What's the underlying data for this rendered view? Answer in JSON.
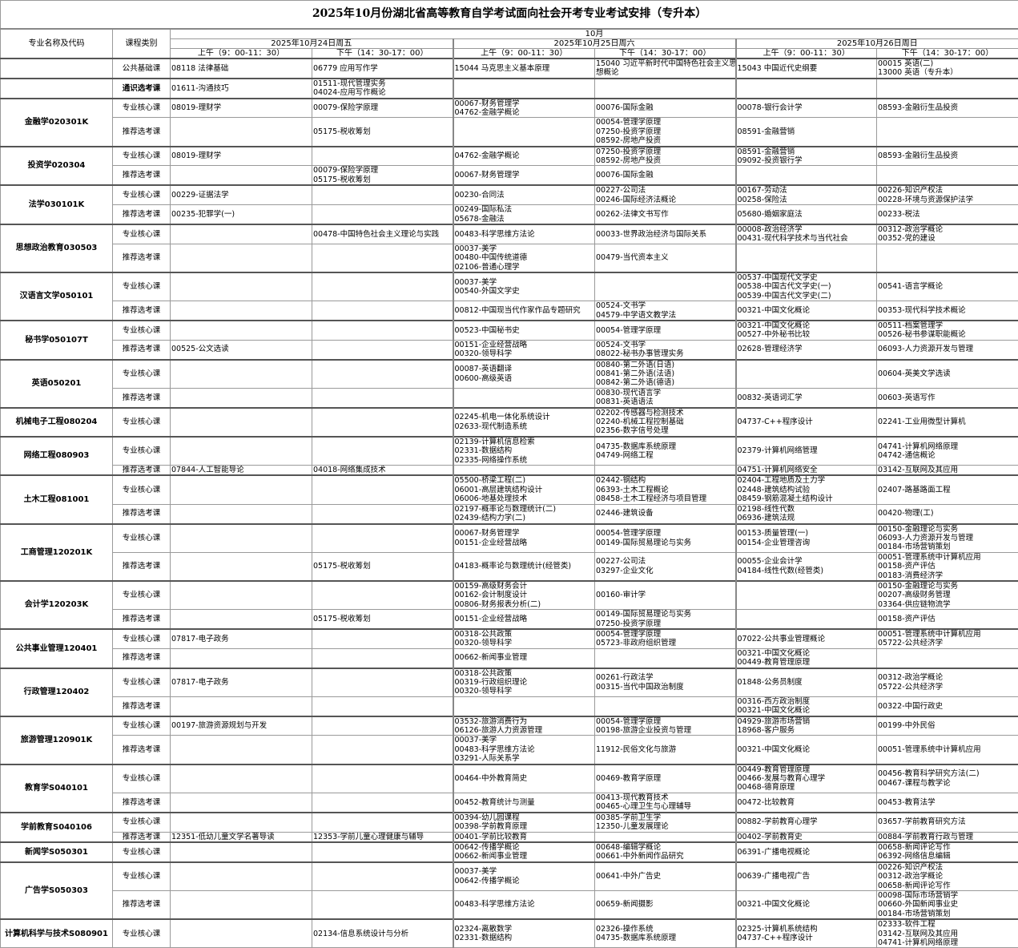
{
  "title": "2025年10月份湖北省高等教育自学考试面向社会开考专业考试安排（专升本）",
  "header": {
    "major_col": "专业名称及代码",
    "category_col": "课程类别",
    "month": "10月",
    "dates": [
      "2025年10月24日周五",
      "2025年10月25日周六",
      "2025年10月26日周日"
    ],
    "sessions": [
      "上午（9：00-11：30）",
      "下午（14：30-17：00）",
      "上午（9：00-11：30）",
      "下午（14：30-17：00）",
      "上午（9：00-11：30）",
      "下午（14：30-17：00）"
    ]
  },
  "majors": [
    {
      "name": "",
      "rows": [
        {
          "category": "公共基础课",
          "cells": [
            [
              "08118 法律基础"
            ],
            [
              "06779 应用写作学"
            ],
            [
              "15044 马克思主义基本原理"
            ],
            [
              "15040 习近平新时代中国特色社会主义思",
              "想概论"
            ],
            [
              "15043 中国近代史纲要"
            ],
            [
              "00015 英语(二)",
              "13000 英语（专升本）"
            ]
          ]
        }
      ]
    },
    {
      "name": "",
      "rows": [
        {
          "category": "通识选考课",
          "bold": true,
          "cells": [
            [
              "01611-沟通技巧"
            ],
            [
              "01511-现代管理实务",
              "04024-应用写作概论"
            ],
            [],
            [],
            [],
            []
          ]
        }
      ]
    },
    {
      "name": "金融学020301K",
      "rows": [
        {
          "category": "专业核心课",
          "cells": [
            [
              "08019-理财学"
            ],
            [
              "00079-保险学原理"
            ],
            [
              "00067-财务管理学",
              "04762-金融学概论"
            ],
            [
              "00076-国际金融"
            ],
            [
              "00078-银行会计学"
            ],
            [
              "08593-金融衍生品投资"
            ]
          ]
        },
        {
          "category": "推荐选考课",
          "cells": [
            [],
            [
              "05175-税收筹划"
            ],
            [],
            [
              "00054-管理学原理",
              "07250-投资学原理",
              "08592-房地产投资"
            ],
            [
              "08591-金融营销"
            ],
            []
          ]
        }
      ]
    },
    {
      "name": "投资学020304",
      "rows": [
        {
          "category": "专业核心课",
          "cells": [
            [
              "08019-理财学"
            ],
            [],
            [
              "04762-金融学概论"
            ],
            [
              "07250-投资学原理",
              "08592-房地产投资"
            ],
            [
              "08591-金融营销",
              "09092-投资银行学"
            ],
            [
              "08593-金融衍生品投资"
            ]
          ]
        },
        {
          "category": "推荐选考课",
          "cells": [
            [],
            [
              "00079-保险学原理",
              "05175-税收筹划"
            ],
            [
              "00067-财务管理学"
            ],
            [
              "00076-国际金融"
            ],
            [],
            []
          ]
        }
      ]
    },
    {
      "name": "法学030101K",
      "rows": [
        {
          "category": "专业核心课",
          "cells": [
            [
              "00229-证据法学"
            ],
            [],
            [
              "00230-合同法"
            ],
            [
              "00227-公司法",
              "00246-国际经济法概论"
            ],
            [
              "00167-劳动法",
              "00258-保险法"
            ],
            [
              "00226-知识产权法",
              "00228-环境与资源保护法学"
            ]
          ]
        },
        {
          "category": "推荐选考课",
          "cells": [
            [
              "00235-犯罪学(一)"
            ],
            [],
            [
              "00249-国际私法",
              "05678-金融法"
            ],
            [
              "00262-法律文书写作"
            ],
            [
              "05680-婚姻家庭法"
            ],
            [
              "00233-税法"
            ]
          ]
        }
      ]
    },
    {
      "name": "思想政治教育030503",
      "rows": [
        {
          "category": "专业核心课",
          "cells": [
            [],
            [
              "00478-中国特色社会主义理论与实践"
            ],
            [
              "00483-科学思维方法论"
            ],
            [
              "00033-世界政治经济与国际关系"
            ],
            [
              "00008-政治经济学",
              "00431-现代科学技术与当代社会"
            ],
            [
              "00312-政治学概论",
              "00352-党的建设"
            ]
          ]
        },
        {
          "category": "推荐选考课",
          "cells": [
            [],
            [],
            [
              "00037-美学",
              "00480-中国传统道德",
              "02106-普通心理学"
            ],
            [
              "00479-当代资本主义"
            ],
            [],
            []
          ]
        }
      ]
    },
    {
      "name": "汉语言文学050101",
      "rows": [
        {
          "category": "专业核心课",
          "cells": [
            [],
            [],
            [
              "00037-美学",
              "00540-外国文学史"
            ],
            [],
            [
              "00537-中国现代文学史",
              "00538-中国古代文学史(一)",
              "00539-中国古代文学史(二)"
            ],
            [
              "00541-语言学概论"
            ]
          ]
        },
        {
          "category": "推荐选考课",
          "cells": [
            [],
            [],
            [
              "00812-中国现当代作家作品专题研究"
            ],
            [
              "00524-文书学",
              "04579-中学语文教学法"
            ],
            [
              "00321-中国文化概论"
            ],
            [
              "00353-现代科学技术概论"
            ]
          ]
        }
      ]
    },
    {
      "name": "秘书学050107T",
      "rows": [
        {
          "category": "专业核心课",
          "cells": [
            [],
            [],
            [
              "00523-中国秘书史"
            ],
            [
              "00054-管理学原理"
            ],
            [
              "00321-中国文化概论",
              "00527-中外秘书比较"
            ],
            [
              "00511-档案管理学",
              "00526-秘书参谋职能概论"
            ]
          ]
        },
        {
          "category": "推荐选考课",
          "cells": [
            [
              "00525-公文选读"
            ],
            [],
            [
              "00151-企业经营战略",
              "00320-领导科学"
            ],
            [
              "00524-文书学",
              "08022-秘书办事管理实务"
            ],
            [
              "02628-管理经济学"
            ],
            [
              "06093-人力资源开发与管理"
            ]
          ]
        }
      ]
    },
    {
      "name": "英语050201",
      "rows": [
        {
          "category": "专业核心课",
          "cells": [
            [],
            [],
            [
              "00087-英语翻译",
              "00600-高级英语"
            ],
            [
              "00840-第二外语(日语)",
              "00841-第二外语(法语)",
              "00842-第二外语(德语)"
            ],
            [],
            [
              "00604-英美文学选读"
            ]
          ]
        },
        {
          "category": "推荐选考课",
          "cells": [
            [],
            [],
            [],
            [
              "00830-现代语言学",
              "00831-英语语法"
            ],
            [
              "00832-英语词汇学"
            ],
            [
              "00603-英语写作"
            ]
          ]
        }
      ]
    },
    {
      "name": "机械电子工程080204",
      "rows": [
        {
          "category": "专业核心课",
          "cells": [
            [],
            [],
            [
              "02245-机电一体化系统设计",
              "02633-现代制造系统"
            ],
            [
              "02202-传感器与检测技术",
              "02240-机械工程控制基础",
              "02356-数字信号处理"
            ],
            [
              "04737-C++程序设计"
            ],
            [
              "02241-工业用微型计算机"
            ]
          ]
        }
      ]
    },
    {
      "name": "网络工程080903",
      "rows": [
        {
          "category": "专业核心课",
          "cells": [
            [],
            [],
            [
              "02139-计算机信息检索",
              "02331-数据结构",
              "02335-网络操作系统"
            ],
            [
              "04735-数据库系统原理",
              "04749-网络工程"
            ],
            [
              "02379-计算机网络管理"
            ],
            [
              "04741-计算机网络原理",
              "04742-通信概论"
            ]
          ]
        },
        {
          "category": "推荐选考课",
          "cells": [
            [
              "07844-人工智能导论"
            ],
            [
              "04018-网络集成技术"
            ],
            [],
            [],
            [
              "04751-计算机网络安全"
            ],
            [
              "03142-互联网及其应用"
            ]
          ]
        }
      ]
    },
    {
      "name": "土木工程081001",
      "rows": [
        {
          "category": "专业核心课",
          "cells": [
            [],
            [],
            [
              "05500-桥梁工程(二)",
              "06001-高层建筑结构设计",
              "06006-地基处理技术"
            ],
            [
              "02442-钢结构",
              "06393-土木工程概论",
              "08458-土木工程经济与项目管理"
            ],
            [
              "02404-工程地质及土力学",
              "02448-建筑结构试验",
              "08459-钢筋混凝土结构设计"
            ],
            [
              "02407-路基路面工程"
            ]
          ]
        },
        {
          "category": "推荐选考课",
          "cells": [
            [],
            [],
            [
              "02197-概率论与数理统计(二)",
              "02439-结构力学(二)"
            ],
            [
              "02446-建筑设备"
            ],
            [
              "02198-线性代数",
              "06936-建筑法规"
            ],
            [
              "00420-物理(工)"
            ]
          ]
        }
      ]
    },
    {
      "name": "工商管理120201K",
      "rows": [
        {
          "category": "专业核心课",
          "cells": [
            [],
            [],
            [
              "00067-财务管理学",
              "00151-企业经营战略"
            ],
            [
              "00054-管理学原理",
              "00149-国际贸易理论与实务"
            ],
            [
              "00153-质量管理(一)",
              "00154-企业管理咨询"
            ],
            [
              "00150-金融理论与实务",
              "06093-人力资源开发与管理",
              "00184-市场营销策划"
            ]
          ]
        },
        {
          "category": "推荐选考课",
          "cells": [
            [],
            [
              "05175-税收筹划"
            ],
            [
              "04183-概率论与数理统计(经管类)"
            ],
            [
              "00227-公司法",
              "03297-企业文化"
            ],
            [
              "00055-企业会计学",
              "04184-线性代数(经管类)"
            ],
            [
              "00051-管理系统中计算机应用",
              "00158-资产评估",
              "00183-消费经济学"
            ]
          ]
        }
      ]
    },
    {
      "name": "会计学120203K",
      "rows": [
        {
          "category": "专业核心课",
          "cells": [
            [],
            [],
            [
              "00159-高级财务会计",
              "00162-会计制度设计",
              "00806-财务报表分析(二)"
            ],
            [
              "00160-审计学"
            ],
            [],
            [
              "00150-金融理论与实务",
              "00207-高级财务管理",
              "03364-供应链物流学"
            ]
          ]
        },
        {
          "category": "推荐选考课",
          "cells": [
            [],
            [
              "05175-税收筹划"
            ],
            [
              "00151-企业经营战略"
            ],
            [
              "00149-国际贸易理论与实务",
              "07250-投资学原理"
            ],
            [],
            [
              "00158-资产评估"
            ]
          ]
        }
      ]
    },
    {
      "name": "公共事业管理120401",
      "rows": [
        {
          "category": "专业核心课",
          "cells": [
            [
              "07817-电子政务"
            ],
            [],
            [
              "00318-公共政策",
              "00320-领导科学"
            ],
            [
              "00054-管理学原理",
              "05723-非政府组织管理"
            ],
            [
              "07022-公共事业管理概论"
            ],
            [
              "00051-管理系统中计算机应用",
              "05722-公共经济学"
            ]
          ]
        },
        {
          "category": "推荐选考课",
          "cells": [
            [],
            [],
            [
              "00662-新闻事业管理"
            ],
            [],
            [
              "00321-中国文化概论",
              "00449-教育管理原理"
            ],
            []
          ]
        }
      ]
    },
    {
      "name": "行政管理120402",
      "rows": [
        {
          "category": "专业核心课",
          "cells": [
            [
              "07817-电子政务"
            ],
            [],
            [
              "00318-公共政策",
              "00319-行政组织理论",
              "00320-领导科学"
            ],
            [
              "00261-行政法学",
              "00315-当代中国政治制度"
            ],
            [
              "01848-公务员制度"
            ],
            [
              "00312-政治学概论",
              "05722-公共经济学"
            ]
          ]
        },
        {
          "category": "推荐选考课",
          "cells": [
            [],
            [],
            [],
            [],
            [
              "00316-西方政治制度",
              "00321-中国文化概论"
            ],
            [
              "00322-中国行政史"
            ]
          ]
        }
      ]
    },
    {
      "name": "旅游管理120901K",
      "rows": [
        {
          "category": "专业核心课",
          "cells": [
            [
              "00197-旅游资源规划与开发"
            ],
            [],
            [
              "03532-旅游消费行为",
              "06126-旅游人力资源管理"
            ],
            [
              "00054-管理学原理",
              "00198-旅游企业投资与管理"
            ],
            [
              "04929-旅游市场营销",
              "18968-客户服务"
            ],
            [
              "00199-中外民俗"
            ]
          ]
        },
        {
          "category": "推荐选考课",
          "cells": [
            [],
            [],
            [
              "00037-美学",
              "00483-科学思维方法论",
              "03291-人际关系学"
            ],
            [
              "11912-民俗文化与旅游"
            ],
            [
              "00321-中国文化概论"
            ],
            [
              "00051-管理系统中计算机应用"
            ]
          ]
        }
      ]
    },
    {
      "name": "教育学S040101",
      "rows": [
        {
          "category": "专业核心课",
          "cells": [
            [],
            [],
            [
              "00464-中外教育简史"
            ],
            [
              "00469-教育学原理"
            ],
            [
              "00449-教育管理原理",
              "00466-发展与教育心理学",
              "00468-德育原理"
            ],
            [
              "00456-教育科学研究方法(二)",
              "00467-课程与教学论"
            ]
          ]
        },
        {
          "category": "推荐选考课",
          "cells": [
            [],
            [],
            [
              "00452-教育统计与测量"
            ],
            [
              "00413-现代教育技术",
              "00465-心理卫生与心理辅导"
            ],
            [
              "00472-比较教育"
            ],
            [
              "00453-教育法学"
            ]
          ]
        }
      ]
    },
    {
      "name": "学前教育S040106",
      "rows": [
        {
          "category": "专业核心课",
          "cells": [
            [],
            [],
            [
              "00394-幼儿园课程",
              "00398-学前教育原理"
            ],
            [
              "00385-学前卫生学",
              "12350-儿童发展理论"
            ],
            [
              "00882-学前教育心理学"
            ],
            [
              "03657-学前教育研究方法"
            ]
          ]
        },
        {
          "category": "推荐选考课",
          "cells": [
            [
              "12351-低幼儿童文学名著导读"
            ],
            [
              "12353-学前儿童心理健康与辅导"
            ],
            [
              "00401-学前比较教育"
            ],
            [],
            [
              "00402-学前教育史"
            ],
            [
              "00884-学前教育行政与管理"
            ]
          ]
        }
      ]
    },
    {
      "name": "新闻学S050301",
      "rows": [
        {
          "category": "专业核心课",
          "cells": [
            [],
            [],
            [
              "00642-传播学概论",
              "00662-新闻事业管理"
            ],
            [
              "00648-编辑学概论",
              "00661-中外新闻作品研究"
            ],
            [
              "06391-广播电视概论"
            ],
            [
              "00658-新闻评论写作",
              "06392-网络信息编辑"
            ]
          ]
        }
      ]
    },
    {
      "name": "广告学S050303",
      "rows": [
        {
          "category": "专业核心课",
          "cells": [
            [],
            [],
            [
              "00037-美学",
              "00642-传播学概论"
            ],
            [
              "00641-中外广告史"
            ],
            [
              "00639-广播电视广告"
            ],
            [
              "00226-知识产权法",
              "00312-政治学概论",
              "00658-新闻评论写作"
            ]
          ]
        },
        {
          "category": "推荐选考课",
          "cells": [
            [],
            [],
            [
              "00483-科学思维方法论"
            ],
            [
              "00659-新闻摄影"
            ],
            [
              "00321-中国文化概论"
            ],
            [
              "00098-国际市场营销学",
              "00660-外国新闻事业史",
              "00184-市场营销策划"
            ]
          ]
        }
      ]
    },
    {
      "name": "计算机科学与技术S080901",
      "rows": [
        {
          "category": "专业核心课",
          "cells": [
            [],
            [
              "02134-信息系统设计与分析"
            ],
            [
              "02324-离散数学",
              "02331-数据结构"
            ],
            [
              "02326-操作系统",
              "04735-数据库系统原理"
            ],
            [
              "02325-计算机系统结构",
              "04737-C++程序设计"
            ],
            [
              "02333-软件工程",
              "03142-互联网及其应用",
              "04741-计算机网络原理"
            ]
          ]
        }
      ]
    }
  ]
}
